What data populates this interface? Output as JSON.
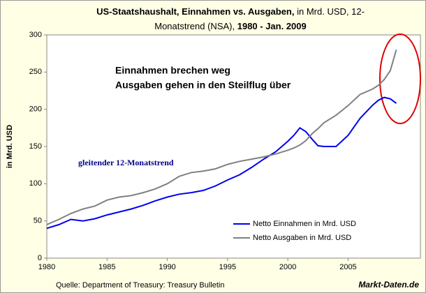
{
  "chart_data": {
    "type": "line",
    "title_parts": [
      "US-Staatshaushalt, Einnahmen vs. Ausgaben,",
      "in Mrd. USD, 12-",
      "Monatstrend (NSA),",
      "1980 - Jan. 2009"
    ],
    "ylabel": "in Mrd. USD",
    "annotations": [
      "Einnahmen brechen weg",
      "Ausgaben gehen in den Steilflug über",
      "gleitender 12-Monatstrend"
    ],
    "source": "Quelle: Department of Treasury: Treasury Bulletin",
    "brand": "Markt-Daten.de",
    "x": [
      1980,
      1981,
      1982,
      1983,
      1984,
      1985,
      1986,
      1987,
      1988,
      1989,
      1990,
      1991,
      1992,
      1993,
      1994,
      1995,
      1996,
      1997,
      1998,
      1999,
      2000,
      2000.5,
      2001,
      2001.5,
      2002,
      2002.5,
      2003,
      2004,
      2005,
      2006,
      2007,
      2007.5,
      2008,
      2008.5,
      2009
    ],
    "series": [
      {
        "name": "Netto Einnahmen in Mrd. USD",
        "color": "#0000ee",
        "values": [
          40,
          45,
          52,
          50,
          53,
          58,
          62,
          66,
          71,
          77,
          82,
          86,
          88,
          91,
          97,
          105,
          112,
          122,
          133,
          143,
          157,
          165,
          175,
          170,
          160,
          151,
          150,
          150,
          165,
          188,
          205,
          212,
          216,
          214,
          208
        ]
      },
      {
        "name": "Netto Ausgaben in Mrd. USD",
        "color": "#808080",
        "values": [
          45,
          52,
          60,
          66,
          70,
          78,
          82,
          84,
          88,
          93,
          100,
          110,
          115,
          117,
          120,
          126,
          130,
          133,
          136,
          140,
          145,
          148,
          152,
          158,
          167,
          174,
          182,
          192,
          205,
          220,
          227,
          232,
          240,
          252,
          280
        ]
      }
    ],
    "xlim": [
      1980,
      2011
    ],
    "ylim": [
      0,
      300
    ],
    "xticks": [
      1980,
      1985,
      1990,
      1995,
      2000,
      2005
    ],
    "yticks": [
      0,
      50,
      100,
      150,
      200,
      250,
      300
    ],
    "grid": false
  }
}
